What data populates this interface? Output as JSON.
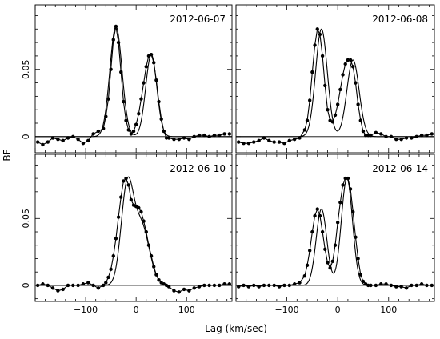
{
  "labels": {
    "xlabel": "Lag (km/sec)",
    "ylabel": "BF"
  },
  "chart_data": [
    {
      "type": "line",
      "panel": "top-left",
      "title": "2012-06-07",
      "xlim": [
        -200,
        190
      ],
      "ylim": [
        -0.012,
        0.098
      ],
      "xticks": [],
      "yticks": [
        0,
        0.05
      ],
      "ytick_labels": [
        "0",
        "0.05"
      ],
      "peaks": [
        {
          "center": -40,
          "amp": 0.082,
          "sigma": 12
        },
        {
          "center": 30,
          "amp": 0.061,
          "sigma": 11
        }
      ],
      "x": [
        -195,
        -185,
        -175,
        -165,
        -155,
        -145,
        -135,
        -125,
        -115,
        -105,
        -95,
        -85,
        -75,
        -65,
        -60,
        -55,
        -50,
        -45,
        -40,
        -35,
        -30,
        -25,
        -20,
        -15,
        -10,
        -5,
        0,
        5,
        10,
        15,
        20,
        25,
        30,
        35,
        40,
        45,
        50,
        55,
        60,
        65,
        75,
        85,
        95,
        105,
        115,
        125,
        135,
        145,
        155,
        165,
        175,
        185
      ],
      "y": [
        -0.004,
        -0.006,
        -0.004,
        -0.001,
        -0.002,
        -0.003,
        -0.001,
        0,
        -0.002,
        -0.005,
        -0.003,
        0.002,
        0.004,
        0.006,
        0.015,
        0.028,
        0.05,
        0.072,
        0.082,
        0.07,
        0.048,
        0.026,
        0.012,
        0.005,
        0.002,
        0.004,
        0.009,
        0.017,
        0.028,
        0.04,
        0.052,
        0.06,
        0.061,
        0.055,
        0.042,
        0.026,
        0.013,
        0.004,
        -0.001,
        -0.001,
        -0.002,
        -0.002,
        -0.001,
        -0.002,
        0,
        0.001,
        0.001,
        0,
        0.001,
        0.001,
        0.002,
        0.002
      ]
    },
    {
      "type": "line",
      "panel": "top-right",
      "title": "2012-06-08",
      "xlim": [
        -200,
        190
      ],
      "ylim": [
        -0.012,
        0.098
      ],
      "xticks": [],
      "yticks": [],
      "ytick_labels": [],
      "peaks": [
        {
          "center": -32,
          "amp": 0.08,
          "sigma": 11.5
        },
        {
          "center": 30,
          "amp": 0.057,
          "sigma": 12
        }
      ],
      "x": [
        -195,
        -185,
        -175,
        -165,
        -155,
        -145,
        -135,
        -125,
        -115,
        -105,
        -95,
        -85,
        -75,
        -65,
        -60,
        -55,
        -50,
        -45,
        -40,
        -35,
        -30,
        -25,
        -20,
        -15,
        -10,
        -5,
        0,
        5,
        10,
        15,
        20,
        25,
        30,
        35,
        40,
        45,
        50,
        55,
        60,
        65,
        75,
        85,
        95,
        105,
        115,
        125,
        135,
        145,
        155,
        165,
        175,
        185
      ],
      "y": [
        -0.004,
        -0.005,
        -0.005,
        -0.004,
        -0.003,
        -0.001,
        -0.003,
        -0.004,
        -0.004,
        -0.005,
        -0.003,
        -0.002,
        -0.001,
        0.005,
        0.012,
        0.027,
        0.048,
        0.068,
        0.08,
        0.076,
        0.06,
        0.038,
        0.02,
        0.012,
        0.011,
        0.016,
        0.024,
        0.035,
        0.046,
        0.054,
        0.057,
        0.057,
        0.052,
        0.04,
        0.024,
        0.012,
        0.004,
        0.001,
        0.001,
        0.001,
        0.003,
        0.002,
        0,
        0,
        -0.002,
        -0.002,
        -0.001,
        -0.001,
        0,
        0.001,
        0.001,
        0.002
      ]
    },
    {
      "type": "line",
      "panel": "bottom-left",
      "title": "2012-06-10",
      "xlim": [
        -200,
        190
      ],
      "ylim": [
        -0.012,
        0.098
      ],
      "xticks": [
        -100,
        0,
        100
      ],
      "xtick_labels": [
        "−100",
        "0",
        "100"
      ],
      "yticks": [
        0,
        0.05
      ],
      "ytick_labels": [
        "0",
        "0.05"
      ],
      "peaks": [
        {
          "center": -18,
          "amp": 0.07,
          "sigma": 12
        },
        {
          "center": 10,
          "amp": 0.045,
          "sigma": 16
        }
      ],
      "x": [
        -195,
        -185,
        -175,
        -165,
        -155,
        -145,
        -135,
        -125,
        -115,
        -105,
        -95,
        -85,
        -75,
        -65,
        -60,
        -55,
        -50,
        -45,
        -40,
        -35,
        -30,
        -25,
        -20,
        -15,
        -10,
        -5,
        0,
        5,
        10,
        15,
        20,
        25,
        30,
        35,
        40,
        45,
        50,
        55,
        60,
        65,
        75,
        85,
        95,
        105,
        115,
        125,
        135,
        145,
        155,
        165,
        175,
        185
      ],
      "y": [
        0,
        0.001,
        0,
        -0.002,
        -0.004,
        -0.003,
        0,
        0,
        0,
        0.001,
        0.002,
        0,
        -0.002,
        0,
        0.002,
        0.006,
        0.012,
        0.022,
        0.035,
        0.051,
        0.066,
        0.078,
        0.08,
        0.075,
        0.064,
        0.06,
        0.059,
        0.058,
        0.055,
        0.048,
        0.04,
        0.03,
        0.022,
        0.014,
        0.008,
        0.004,
        0.002,
        0.001,
        0,
        -0.001,
        -0.004,
        -0.005,
        -0.003,
        -0.004,
        -0.002,
        -0.001,
        0,
        0,
        0,
        0,
        0.001,
        0.001
      ]
    },
    {
      "type": "line",
      "panel": "bottom-right",
      "title": "2012-06-14",
      "xlim": [
        -200,
        190
      ],
      "ylim": [
        -0.012,
        0.098
      ],
      "xticks": [
        -100,
        0,
        100
      ],
      "xtick_labels": [
        "−100",
        "0",
        "100"
      ],
      "yticks": [],
      "ytick_labels": [],
      "peaks": [
        {
          "center": -32,
          "amp": 0.057,
          "sigma": 10.5
        },
        {
          "center": 18,
          "amp": 0.08,
          "sigma": 11
        }
      ],
      "x": [
        -195,
        -185,
        -175,
        -165,
        -155,
        -145,
        -135,
        -125,
        -115,
        -105,
        -95,
        -85,
        -75,
        -65,
        -60,
        -55,
        -50,
        -45,
        -40,
        -35,
        -30,
        -25,
        -20,
        -15,
        -10,
        -5,
        0,
        5,
        10,
        15,
        20,
        25,
        30,
        35,
        40,
        45,
        50,
        55,
        60,
        65,
        75,
        85,
        95,
        105,
        115,
        125,
        135,
        145,
        155,
        165,
        175,
        185
      ],
      "y": [
        -0.001,
        0,
        -0.001,
        0,
        -0.001,
        0,
        0,
        0,
        -0.001,
        0,
        0,
        0.001,
        0.002,
        0.007,
        0.015,
        0.026,
        0.04,
        0.052,
        0.057,
        0.052,
        0.04,
        0.027,
        0.017,
        0.013,
        0.018,
        0.03,
        0.047,
        0.062,
        0.075,
        0.08,
        0.08,
        0.072,
        0.055,
        0.036,
        0.02,
        0.008,
        0.003,
        0.001,
        0,
        0,
        0,
        0.001,
        0.001,
        0,
        -0.001,
        -0.001,
        -0.002,
        0,
        0,
        0.001,
        0,
        0
      ]
    }
  ]
}
